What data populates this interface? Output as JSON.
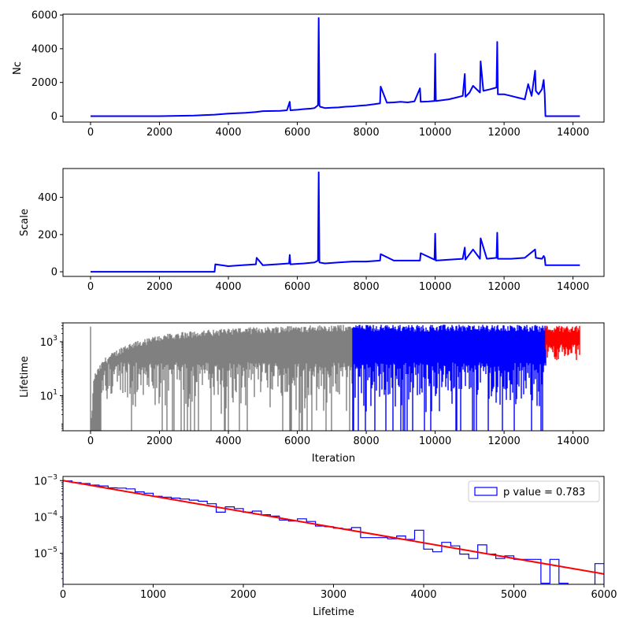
{
  "chart_data": [
    {
      "type": "line",
      "ylabel": "Nc",
      "xlim": [
        -800,
        14900
      ],
      "ylim": [
        -350,
        6050
      ],
      "xticks": [
        0,
        2000,
        4000,
        6000,
        8000,
        10000,
        12000,
        14000
      ],
      "xtick_labels": [
        "0",
        "2000",
        "4000",
        "6000",
        "8000",
        "10000",
        "12000",
        "14000"
      ],
      "yticks": [
        0,
        2000,
        4000,
        6000
      ],
      "ytick_labels": [
        "0",
        "2000",
        "4000",
        "6000"
      ],
      "color": "#0000ff",
      "series": [
        {
          "x": [
            0,
            2000,
            3000,
            3600,
            4000,
            4500,
            4800,
            5000,
            5500,
            5700,
            5780,
            5800,
            6000,
            6200,
            6400,
            6500,
            6600,
            6620,
            6640,
            6660,
            6800,
            7000,
            7200,
            7400,
            7600,
            7800,
            8000,
            8200,
            8400,
            8420,
            8600,
            8800,
            9000,
            9200,
            9400,
            9560,
            9580,
            9800,
            9980,
            10000,
            10020,
            10200,
            10400,
            10600,
            10800,
            10860,
            10880,
            11000,
            11100,
            11300,
            11320,
            11400,
            11600,
            11780,
            11800,
            11820,
            12000,
            12200,
            12400,
            12600,
            12700,
            12800,
            12900,
            12920,
            13000,
            13100,
            13150,
            13180,
            13200,
            14200
          ],
          "y": [
            0,
            0,
            40,
            90,
            150,
            200,
            250,
            300,
            320,
            350,
            850,
            350,
            380,
            420,
            450,
            480,
            650,
            5820,
            650,
            560,
            480,
            500,
            520,
            560,
            580,
            620,
            650,
            700,
            760,
            1750,
            800,
            820,
            850,
            820,
            880,
            1650,
            850,
            870,
            900,
            3700,
            900,
            950,
            1000,
            1100,
            1200,
            2500,
            1150,
            1400,
            1800,
            1400,
            3250,
            1500,
            1600,
            1700,
            4400,
            1300,
            1300,
            1200,
            1100,
            1000,
            1900,
            1200,
            2700,
            1500,
            1300,
            1600,
            2150,
            1300,
            0,
            0
          ]
        }
      ]
    },
    {
      "type": "line",
      "ylabel": "Scale",
      "xlim": [
        -800,
        14900
      ],
      "ylim": [
        -25,
        555
      ],
      "xticks": [
        0,
        2000,
        4000,
        6000,
        8000,
        10000,
        12000,
        14000
      ],
      "xtick_labels": [
        "0",
        "2000",
        "4000",
        "6000",
        "8000",
        "10000",
        "12000",
        "14000"
      ],
      "yticks": [
        0,
        200,
        400
      ],
      "ytick_labels": [
        "0",
        "200",
        "400"
      ],
      "color": "#0000ff",
      "series": [
        {
          "x": [
            0,
            3600,
            3620,
            4000,
            4400,
            4800,
            4820,
            5000,
            5400,
            5760,
            5780,
            5800,
            6200,
            6500,
            6600,
            6620,
            6640,
            6800,
            7200,
            7600,
            8000,
            8400,
            8420,
            8800,
            9200,
            9560,
            9580,
            9980,
            10000,
            10020,
            10400,
            10800,
            10860,
            10880,
            11100,
            11300,
            11320,
            11500,
            11780,
            11800,
            11820,
            12200,
            12600,
            12900,
            12920,
            13100,
            13150,
            13180,
            13200,
            14200
          ],
          "y": [
            0,
            0,
            40,
            30,
            35,
            40,
            75,
            35,
            40,
            45,
            90,
            40,
            45,
            50,
            60,
            535,
            50,
            45,
            50,
            55,
            55,
            60,
            95,
            60,
            60,
            60,
            100,
            65,
            205,
            60,
            65,
            70,
            130,
            65,
            120,
            70,
            180,
            70,
            75,
            210,
            70,
            70,
            75,
            120,
            75,
            70,
            85,
            75,
            35,
            35
          ]
        }
      ]
    },
    {
      "type": "line",
      "ylabel": "Lifetime",
      "xlabel": "Iteration",
      "xlim": [
        -800,
        14900
      ],
      "ylim": [
        0.5,
        5000
      ],
      "yscale": "log",
      "xticks": [
        0,
        2000,
        4000,
        6000,
        8000,
        10000,
        12000,
        14000
      ],
      "xtick_labels": [
        "0",
        "2000",
        "4000",
        "6000",
        "8000",
        "10000",
        "12000",
        "14000"
      ],
      "yticks": [
        10,
        1000
      ],
      "ytick_labels": [
        "10^1",
        "10^3"
      ],
      "segments": [
        {
          "color": "#808080",
          "x_range": [
            0,
            7600
          ],
          "upper_envelope": [
            [
              0,
              0.5
            ],
            [
              100,
              60
            ],
            [
              400,
              250
            ],
            [
              1000,
              800
            ],
            [
              2000,
              1800
            ],
            [
              3000,
              2600
            ],
            [
              4000,
              3200
            ],
            [
              5000,
              3600
            ],
            [
              6000,
              4000
            ],
            [
              7000,
              4200
            ],
            [
              7600,
              4300
            ]
          ]
        },
        {
          "color": "#0000ff",
          "x_range": [
            7600,
            13200
          ],
          "upper_envelope": [
            [
              7600,
              4300
            ],
            [
              13200,
              4200
            ]
          ]
        },
        {
          "color": "#ff0000",
          "x_range": [
            13200,
            14200
          ],
          "upper_envelope": [
            [
              13200,
              4000
            ],
            [
              14200,
              4000
            ]
          ]
        }
      ]
    },
    {
      "type": "histogram",
      "xlabel": "Lifetime",
      "xlim": [
        0,
        6000
      ],
      "ylim": [
        1.4e-06,
        0.0013
      ],
      "yscale": "log",
      "xticks": [
        0,
        1000,
        2000,
        3000,
        4000,
        5000,
        6000
      ],
      "xtick_labels": [
        "0",
        "1000",
        "2000",
        "3000",
        "4000",
        "5000",
        "6000"
      ],
      "yticks": [
        1e-05,
        0.0001,
        0.001
      ],
      "ytick_labels": [
        "10^-5",
        "10^-4",
        "10^-3"
      ],
      "hist_color": "#0000ff",
      "fit_color": "#ff0000",
      "legend": {
        "label": "p value = 0.783",
        "placement": "top-right"
      },
      "bin_edges": [
        0,
        100,
        200,
        300,
        400,
        500,
        600,
        700,
        800,
        900,
        1000,
        1100,
        1200,
        1300,
        1400,
        1500,
        1600,
        1700,
        1800,
        1900,
        2000,
        2100,
        2200,
        2300,
        2400,
        2500,
        2600,
        2700,
        2800,
        2900,
        3000,
        3100,
        3200,
        3300,
        3400,
        3500,
        3600,
        3700,
        3800,
        3900,
        4000,
        4100,
        4200,
        4300,
        4400,
        4500,
        4600,
        4700,
        4800,
        4900,
        5000,
        5100,
        5200,
        5300,
        5400,
        5500,
        5600,
        5700,
        5800,
        5900,
        6000
      ],
      "bin_values": [
        0.00098,
        0.00088,
        0.00083,
        0.00075,
        0.00071,
        0.00063,
        0.00062,
        0.00059,
        0.00049,
        0.00045,
        0.00037,
        0.00035,
        0.00033,
        0.00031,
        0.00029,
        0.00027,
        0.00023,
        0.000135,
        0.00019,
        0.00017,
        0.000135,
        0.000145,
        0.000115,
        0.000105,
        8.2e-05,
        7.7e-05,
        8.9e-05,
        7.5e-05,
        5.6e-05,
        5.4e-05,
        4.9e-05,
        4.6e-05,
        5.1e-05,
        2.7e-05,
        2.7e-05,
        2.7e-05,
        2.5e-05,
        3e-05,
        2.4e-05,
        4.3e-05,
        1.3e-05,
        1.1e-05,
        2e-05,
        1.6e-05,
        9.5e-06,
        7.2e-06,
        1.7e-05,
        9.5e-06,
        7.2e-06,
        8.5e-06,
        6.8e-06,
        6.8e-06,
        6.8e-06,
        1.5e-06,
        6.8e-06,
        1.5e-06,
        1.2e-06,
        1.2e-06,
        1.2e-06,
        5.2e-06
      ],
      "fit_line": {
        "x": [
          0,
          6000
        ],
        "y": [
          0.001,
          2.7e-06
        ]
      }
    }
  ]
}
